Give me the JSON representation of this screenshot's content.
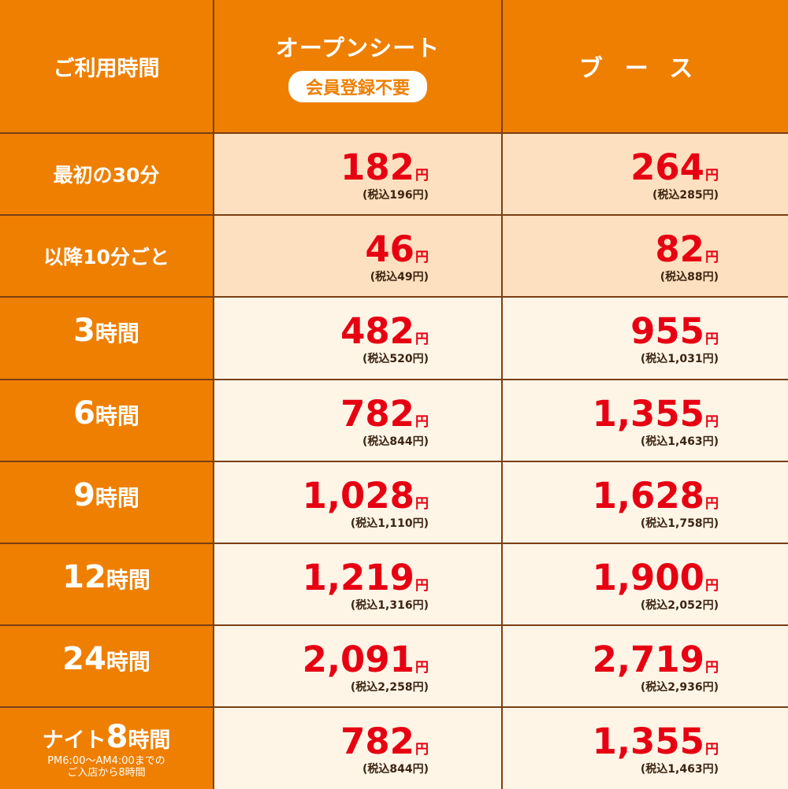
{
  "header": {
    "label": "ご利用時間",
    "open_seat": "オープンシート",
    "open_badge": "会員登録不要",
    "booth": "ブース"
  },
  "yen_symbol": "円",
  "colors": {
    "header_bg": "#ee7f00",
    "peach_row": "#fde0bf",
    "cream_row": "#fef5e7",
    "price_red": "#e60012",
    "border": "#7a3f14"
  },
  "rows": [
    {
      "label": "最初の30分",
      "open": "182",
      "open_tax": "(税込196円)",
      "booth": "264",
      "booth_tax": "(税込285円)"
    },
    {
      "label": "以降10分ごと",
      "open": "46",
      "open_tax": "(税込49円)",
      "booth": "82",
      "booth_tax": "(税込88円)"
    },
    {
      "num": "3",
      "unit": "時間",
      "open": "482",
      "open_tax": "(税込520円)",
      "booth": "955",
      "booth_tax": "(税込1,031円)"
    },
    {
      "num": "6",
      "unit": "時間",
      "open": "782",
      "open_tax": "(税込844円)",
      "booth": "1,355",
      "booth_tax": "(税込1,463円)"
    },
    {
      "num": "9",
      "unit": "時間",
      "open": "1,028",
      "open_tax": "(税込1,110円)",
      "booth": "1,628",
      "booth_tax": "(税込1,758円)"
    },
    {
      "num": "12",
      "unit": "時間",
      "open": "1,219",
      "open_tax": "(税込1,316円)",
      "booth": "1,900",
      "booth_tax": "(税込2,052円)"
    },
    {
      "num": "24",
      "unit": "時間",
      "open": "2,091",
      "open_tax": "(税込2,258円)",
      "booth": "2,719",
      "booth_tax": "(税込2,936円)"
    },
    {
      "pre": "ナイト",
      "num": "8",
      "unit": "時間",
      "note1": "PM6:00～AM4:00までの",
      "note2": "ご入店から8時間",
      "open": "782",
      "open_tax": "(税込844円)",
      "booth": "1,355",
      "booth_tax": "(税込1,463円)"
    }
  ]
}
